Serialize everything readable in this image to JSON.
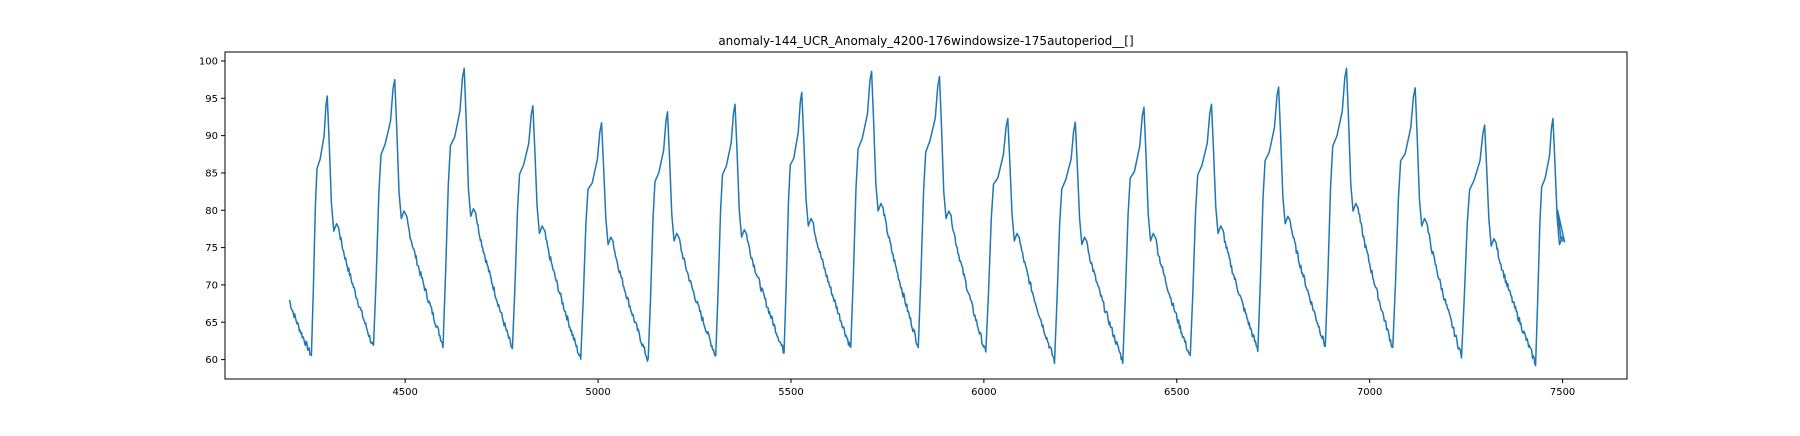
{
  "chart_data": {
    "type": "line",
    "title": "anomaly-144_UCR_Anomaly_4200-176windowsize-175autoperiod__[]",
    "xlabel": "",
    "ylabel": "",
    "xlim": [
      4033,
      7667
    ],
    "ylim": [
      57.4,
      101.2
    ],
    "xticks": [
      4500,
      5000,
      5500,
      6000,
      6500,
      7000,
      7500
    ],
    "yticks": [
      60,
      65,
      70,
      75,
      80,
      85,
      90,
      95,
      100
    ],
    "grid": false,
    "legend": "none",
    "color": "#1f77b4",
    "series": [
      {
        "x_start": 4200,
        "x_end": 7500,
        "start_value": 68.0,
        "end_value": 75.8,
        "cycles": [
          {
            "min_x": 4257,
            "min": 60.5,
            "peak_x": 4298,
            "peak": 95.3,
            "shoulder": 77.8
          },
          {
            "min_x": 4418,
            "min": 61.5,
            "peak_x": 4473,
            "peak": 97.5,
            "shoulder": 79.5
          },
          {
            "min_x": 4598,
            "min": 62.0,
            "peak_x": 4653,
            "peak": 99.0,
            "shoulder": 79.8
          },
          {
            "min_x": 4778,
            "min": 61.3,
            "peak_x": 4831,
            "peak": 94.0,
            "shoulder": 77.5
          },
          {
            "min_x": 4955,
            "min": 60.0,
            "peak_x": 5009,
            "peak": 91.7,
            "shoulder": 76.0
          },
          {
            "min_x": 5130,
            "min": 59.8,
            "peak_x": 5180,
            "peak": 93.2,
            "shoulder": 76.5
          },
          {
            "min_x": 5305,
            "min": 60.5,
            "peak_x": 5355,
            "peak": 94.2,
            "shoulder": 77.0
          },
          {
            "min_x": 5482,
            "min": 61.0,
            "peak_x": 5528,
            "peak": 95.8,
            "shoulder": 78.5
          },
          {
            "min_x": 5655,
            "min": 61.5,
            "peak_x": 5709,
            "peak": 98.6,
            "shoulder": 80.5
          },
          {
            "min_x": 5830,
            "min": 61.8,
            "peak_x": 5885,
            "peak": 97.9,
            "shoulder": 79.5
          },
          {
            "min_x": 6005,
            "min": 60.8,
            "peak_x": 6062,
            "peak": 92.3,
            "shoulder": 76.5
          },
          {
            "min_x": 6183,
            "min": 59.8,
            "peak_x": 6237,
            "peak": 91.8,
            "shoulder": 76.0
          },
          {
            "min_x": 6360,
            "min": 59.8,
            "peak_x": 6415,
            "peak": 93.8,
            "shoulder": 76.5
          },
          {
            "min_x": 6535,
            "min": 60.3,
            "peak_x": 6590,
            "peak": 94.2,
            "shoulder": 77.5
          },
          {
            "min_x": 6710,
            "min": 61.3,
            "peak_x": 6764,
            "peak": 96.5,
            "shoulder": 78.8
          },
          {
            "min_x": 6885,
            "min": 61.8,
            "peak_x": 6940,
            "peak": 99.0,
            "shoulder": 80.5
          },
          {
            "min_x": 7060,
            "min": 61.5,
            "peak_x": 7118,
            "peak": 96.4,
            "shoulder": 78.5
          },
          {
            "min_x": 7238,
            "min": 60.5,
            "peak_x": 7298,
            "peak": 91.4,
            "shoulder": 75.8
          },
          {
            "min_x": 7430,
            "min": 59.5,
            "peak_x": 7475,
            "peak": 92.3,
            "shoulder": 76.0
          }
        ]
      }
    ]
  }
}
